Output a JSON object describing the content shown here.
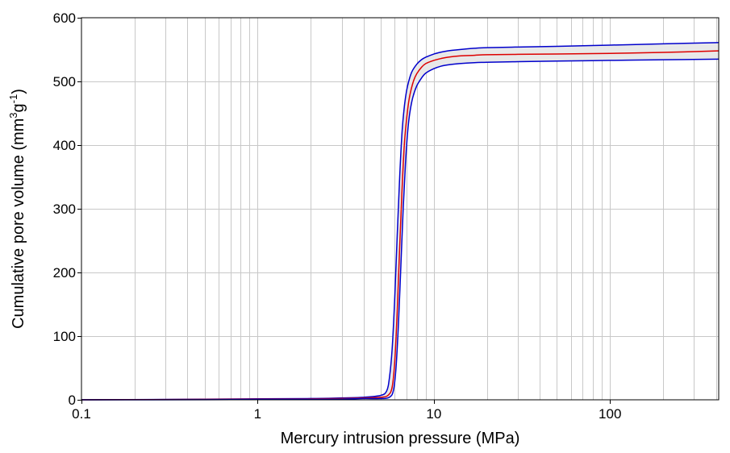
{
  "chart_data": {
    "type": "line",
    "xlabel": "Mercury intrusion pressure (MPa)",
    "ylabel": {
      "text": "Cumulative pore volume (mm",
      "sup1": "3",
      "mid": "g",
      "sup2": "-1",
      "end": ")"
    },
    "x_scale": "log",
    "xlim": [
      0.1,
      414
    ],
    "ylim": [
      0,
      600
    ],
    "grid": true,
    "legend": "none",
    "x_ticks": [
      {
        "value": 0.1,
        "label": "0.1"
      },
      {
        "value": 1,
        "label": "1"
      },
      {
        "value": 10,
        "label": "10"
      },
      {
        "value": 100,
        "label": "100"
      }
    ],
    "y_ticks": [
      {
        "value": 0,
        "label": "0"
      },
      {
        "value": 100,
        "label": "100"
      },
      {
        "value": 200,
        "label": "200"
      },
      {
        "value": 300,
        "label": "300"
      },
      {
        "value": 400,
        "label": "400"
      },
      {
        "value": 500,
        "label": "500"
      },
      {
        "value": 600,
        "label": "600"
      }
    ],
    "band_fill": "#e8e8e8",
    "series": [
      {
        "role": "upper",
        "color": "#0000cc",
        "x": [
          0.1,
          0.25,
          1,
          2,
          3,
          4,
          5,
          5.4,
          5.6,
          5.8,
          6.0,
          6.2,
          6.4,
          6.6,
          6.8,
          7.0,
          7.2,
          7.5,
          8.0,
          8.5,
          9.0,
          10,
          11,
          12,
          14,
          17,
          20,
          30,
          50,
          100,
          200,
          414
        ],
        "y": [
          0,
          0.5,
          1.5,
          2,
          3,
          4,
          7,
          14,
          35,
          80,
          160,
          260,
          350,
          420,
          460,
          485,
          500,
          515,
          527,
          534,
          538,
          543,
          546,
          548,
          550,
          552,
          553,
          554,
          555,
          557,
          559,
          561
        ]
      },
      {
        "role": "mean",
        "color": "#dd0000",
        "x": [
          0.1,
          0.25,
          1,
          2,
          3,
          4,
          5,
          5.5,
          5.8,
          6.0,
          6.2,
          6.4,
          6.6,
          6.8,
          7.0,
          7.2,
          7.4,
          7.7,
          8.0,
          8.5,
          9.0,
          10,
          11,
          12,
          14,
          17,
          20,
          30,
          50,
          100,
          200,
          414
        ],
        "y": [
          0,
          0.3,
          1,
          1.5,
          2,
          3,
          4,
          7,
          20,
          60,
          140,
          240,
          330,
          400,
          440,
          468,
          485,
          502,
          512,
          522,
          528,
          533,
          536,
          538,
          540,
          541,
          542,
          542.5,
          543,
          544,
          545.5,
          548
        ]
      },
      {
        "role": "lower",
        "color": "#0000cc",
        "x": [
          0.1,
          0.25,
          1,
          2,
          3,
          4,
          5,
          5.6,
          5.9,
          6.1,
          6.3,
          6.5,
          6.7,
          6.9,
          7.1,
          7.3,
          7.6,
          8.0,
          8.5,
          9.0,
          10,
          11,
          12,
          14,
          17,
          20,
          30,
          50,
          100,
          200,
          414
        ],
        "y": [
          0,
          0,
          0.5,
          1,
          1,
          2,
          2,
          4,
          15,
          50,
          120,
          210,
          300,
          370,
          420,
          450,
          475,
          493,
          505,
          513,
          520,
          524,
          526,
          528,
          529.5,
          530,
          531,
          532,
          533,
          534,
          535
        ]
      }
    ]
  }
}
